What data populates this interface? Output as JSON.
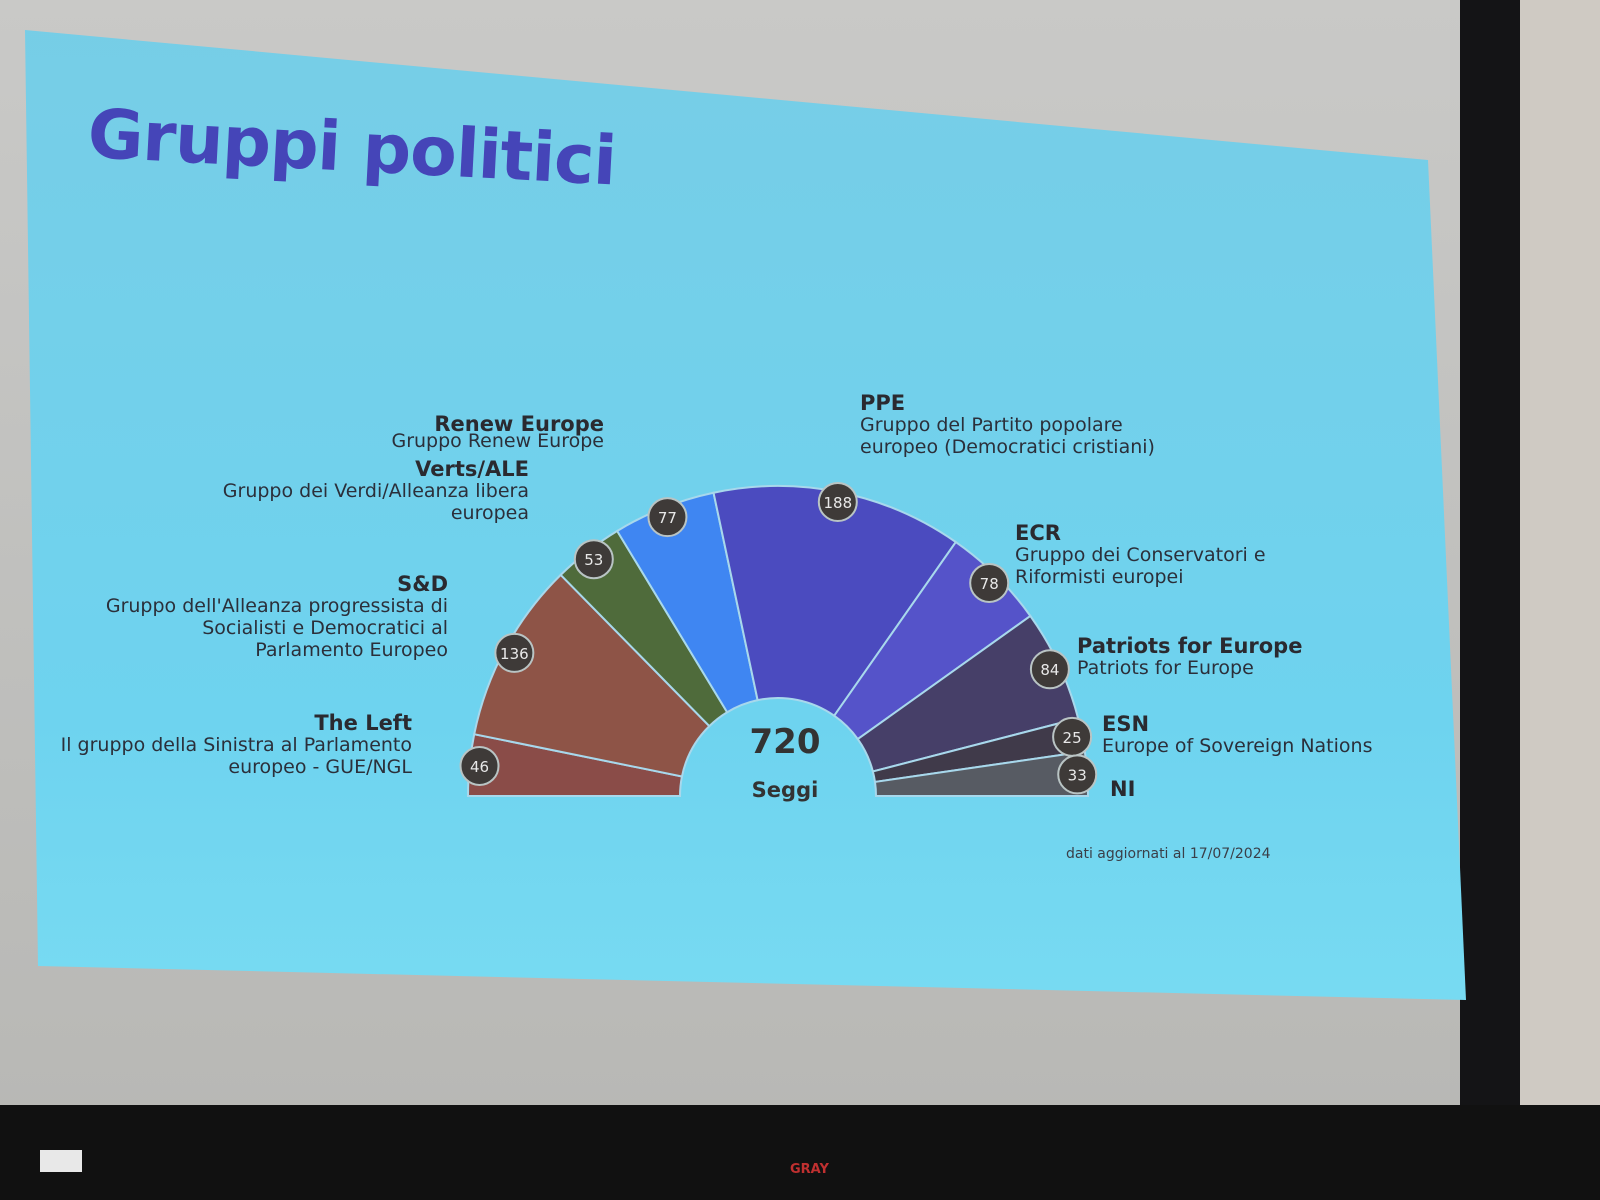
{
  "slide": {
    "title": "Gruppi politici",
    "date_note": "dati aggiornati al 17/07/2024"
  },
  "chart_data": {
    "type": "parliament-semicircle",
    "title": "Gruppi politici",
    "total": "720",
    "total_label": "Seggi",
    "groups": [
      {
        "short": "The Left",
        "name": "Il gruppo della Sinistra al Parlamento europeo - GUE/NGL",
        "seats": 46,
        "color": "#8a4c48"
      },
      {
        "short": "S&D",
        "name": "Gruppo dell'Alleanza progressista di Socialisti e Democratici al Parlamento Europeo",
        "seats": 136,
        "color": "#8e5447"
      },
      {
        "short": "Verts/ALE",
        "name": "Gruppo dei Verdi/Alleanza libera europea",
        "seats": 53,
        "color": "#4f6b3b"
      },
      {
        "short": "Renew Europe",
        "name": "Gruppo Renew Europe",
        "seats": 77,
        "color": "#3f86f2"
      },
      {
        "short": "PPE",
        "name": "Gruppo del Partito popolare europeo (Democratici cristiani)",
        "seats": 188,
        "color": "#4b4bbf"
      },
      {
        "short": "ECR",
        "name": "Gruppo dei Conservatori e Riformisti europei",
        "seats": 78,
        "color": "#5553c9"
      },
      {
        "short": "Patriots for Europe",
        "name": "Patriots for Europe",
        "seats": 84,
        "color": "#463f68"
      },
      {
        "short": "ESN",
        "name": "Europe of Sovereign Nations",
        "seats": 25,
        "color": "#403a4a"
      },
      {
        "short": "NI",
        "name": "",
        "seats": 33,
        "color": "#575b63"
      }
    ]
  },
  "screen": {
    "brand": "GRAY"
  }
}
